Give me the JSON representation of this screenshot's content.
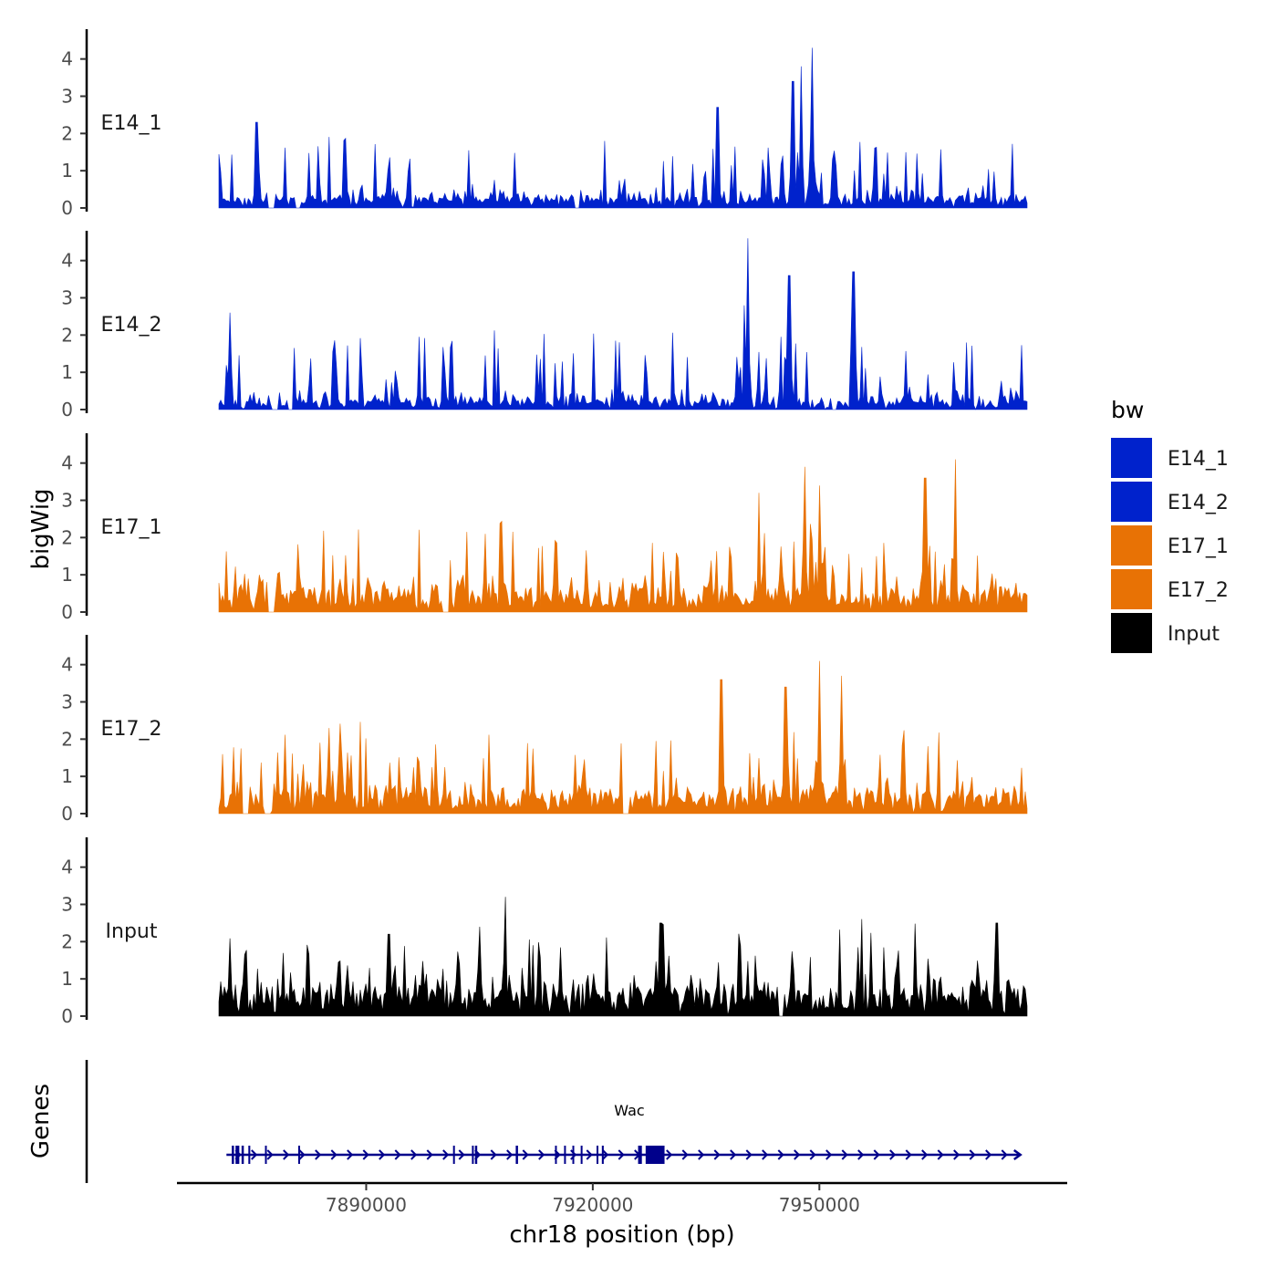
{
  "chart_data": {
    "type": "area",
    "title": "",
    "ylabel": "bigWig",
    "xlabel": "chr18 position (bp)",
    "region": {
      "chrom": "chr18",
      "start": 7870500,
      "end": 7977500
    },
    "x_ticks": [
      {
        "value": 7890000,
        "label": "7890000"
      },
      {
        "value": 7920000,
        "label": "7920000"
      },
      {
        "value": 7950000,
        "label": "7950000"
      }
    ],
    "ylim": [
      0,
      4.8
    ],
    "y_ticks": [
      {
        "value": 0,
        "label": "0"
      },
      {
        "value": 1,
        "label": "1"
      },
      {
        "value": 2,
        "label": "2"
      },
      {
        "value": 3,
        "label": "3"
      },
      {
        "value": 4,
        "label": "4"
      }
    ],
    "series": [
      {
        "name": "E14_1",
        "label": "E14_1",
        "color": "#0022CC",
        "baseline": 0.25,
        "noise": 0.45,
        "spike_prob": 0.12,
        "spike_max": 1.2,
        "seed": 11,
        "gap_starts": [
          7877000,
          7880500,
          7917500
        ],
        "peaks": [
          {
            "x": 7949000,
            "y": 4.3
          },
          {
            "x": 7947500,
            "y": 3.8
          },
          {
            "x": 7946500,
            "y": 3.4
          },
          {
            "x": 7936500,
            "y": 2.7
          },
          {
            "x": 7875500,
            "y": 2.3
          }
        ]
      },
      {
        "name": "E14_2",
        "label": "E14_2",
        "color": "#0022CC",
        "baseline": 0.22,
        "noise": 0.45,
        "spike_prob": 0.12,
        "spike_max": 1.3,
        "seed": 23,
        "gap_starts": [
          7877500,
          7879500,
          7951500
        ],
        "peaks": [
          {
            "x": 7940500,
            "y": 4.6
          },
          {
            "x": 7940000,
            "y": 2.8
          },
          {
            "x": 7954500,
            "y": 3.7
          },
          {
            "x": 7946000,
            "y": 3.6
          },
          {
            "x": 7872000,
            "y": 2.6
          }
        ]
      },
      {
        "name": "E17_1",
        "label": "E17_1",
        "color": "#E87205",
        "baseline": 0.6,
        "noise": 0.55,
        "spike_prob": 0.14,
        "spike_max": 1.3,
        "seed": 37,
        "gap_starts": [
          7877000,
          7900000
        ],
        "peaks": [
          {
            "x": 7968000,
            "y": 4.1
          },
          {
            "x": 7948000,
            "y": 3.9
          },
          {
            "x": 7964000,
            "y": 3.6
          },
          {
            "x": 7942000,
            "y": 3.2
          },
          {
            "x": 7950000,
            "y": 3.4
          }
        ]
      },
      {
        "name": "E17_2",
        "label": "E17_2",
        "color": "#E87205",
        "baseline": 0.55,
        "noise": 0.6,
        "spike_prob": 0.14,
        "spike_max": 1.3,
        "seed": 53,
        "gap_starts": [
          7873500,
          7876500,
          7924000
        ],
        "peaks": [
          {
            "x": 7950000,
            "y": 4.1
          },
          {
            "x": 7937000,
            "y": 3.6
          },
          {
            "x": 7953000,
            "y": 3.7
          },
          {
            "x": 7945500,
            "y": 3.4
          },
          {
            "x": 7885000,
            "y": 2.3
          }
        ]
      },
      {
        "name": "Input",
        "label": "Input",
        "color": "#000000",
        "baseline": 0.75,
        "noise": 0.6,
        "spike_prob": 0.12,
        "spike_max": 1.2,
        "seed": 71,
        "gap_starts": [
          7944500
        ],
        "peaks": [
          {
            "x": 7908500,
            "y": 3.2
          },
          {
            "x": 7905000,
            "y": 2.4
          },
          {
            "x": 7973500,
            "y": 2.5
          },
          {
            "x": 7929000,
            "y": 2.5
          },
          {
            "x": 7893000,
            "y": 2.2
          }
        ]
      }
    ],
    "legend": {
      "title": "bw",
      "position": "right",
      "entries": [
        {
          "label": "E14_1",
          "color": "#0022CC"
        },
        {
          "label": "E14_2",
          "color": "#0022CC"
        },
        {
          "label": "E17_1",
          "color": "#E87205"
        },
        {
          "label": "E17_2",
          "color": "#E87205"
        },
        {
          "label": "Input",
          "color": "#000000"
        }
      ]
    },
    "genes": {
      "title": "Genes",
      "color": "#00008B",
      "items": [
        {
          "name": "Wac",
          "strand": "+",
          "start": 7871500,
          "end": 7976500,
          "exons": [
            [
              7872200,
              7872500
            ],
            [
              7872700,
              7873200
            ],
            [
              7873500,
              7873800
            ],
            [
              7874400,
              7874650
            ],
            [
              7876600,
              7876800
            ],
            [
              7881000,
              7881200
            ],
            [
              7901500,
              7901650
            ],
            [
              7904000,
              7904200
            ],
            [
              7904400,
              7904700
            ],
            [
              7909800,
              7910100
            ],
            [
              7915000,
              7915150
            ],
            [
              7916200,
              7916400
            ],
            [
              7917300,
              7917500
            ],
            [
              7918400,
              7918550
            ],
            [
              7920500,
              7920700
            ],
            [
              7921200,
              7921450
            ],
            [
              7926000,
              7926500
            ],
            [
              7927000,
              7929500
            ]
          ]
        }
      ]
    }
  }
}
